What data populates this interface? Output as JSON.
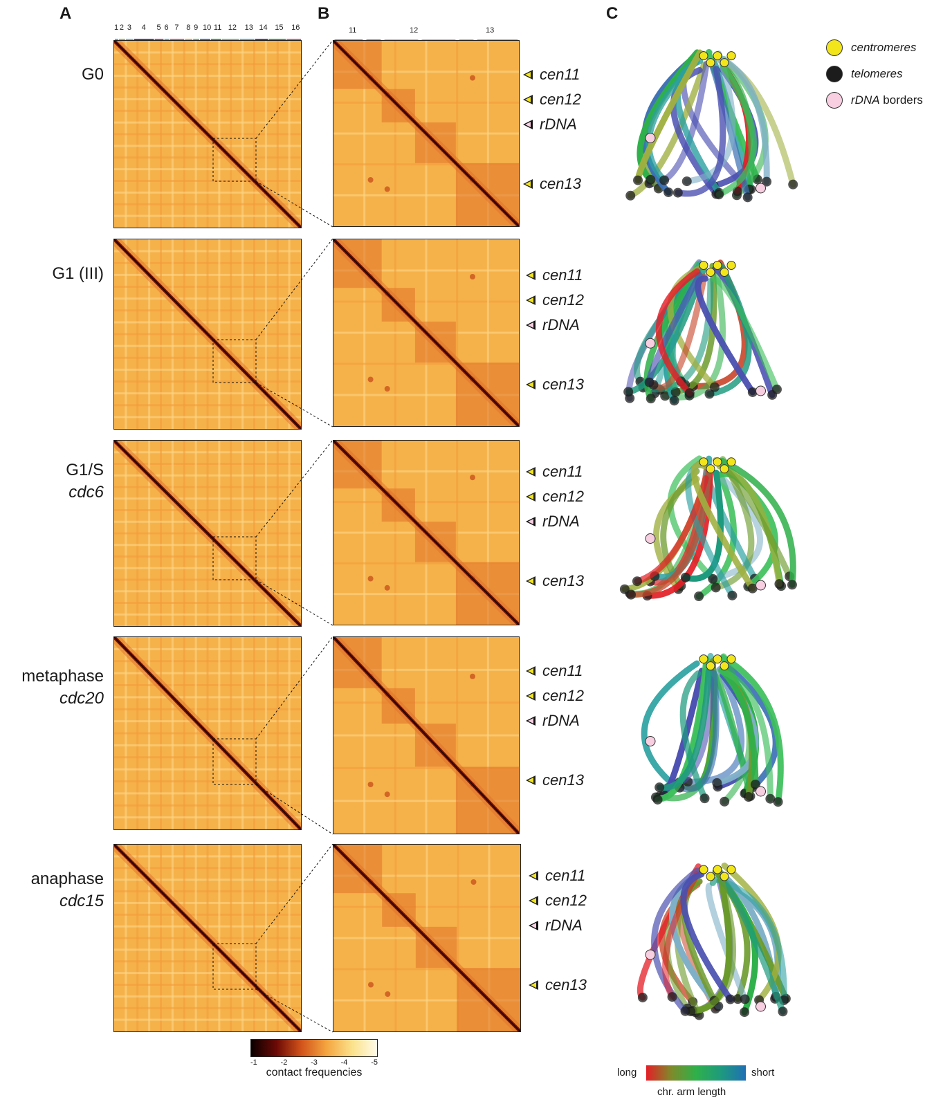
{
  "panels": {
    "a": "A",
    "b": "B",
    "c": "C"
  },
  "conditions": [
    {
      "label": "G0",
      "sub": ""
    },
    {
      "label": "G1 (III)",
      "sub": ""
    },
    {
      "label": "G1/S",
      "sub": "cdc6"
    },
    {
      "label": "metaphase",
      "sub": "cdc20"
    },
    {
      "label": "anaphase",
      "sub": "cdc15"
    }
  ],
  "genome_chromosomes": [
    "1",
    "2",
    "3",
    "4",
    "5",
    "6",
    "7",
    "8",
    "9",
    "10",
    "11",
    "12",
    "13",
    "14",
    "15",
    "16"
  ],
  "zoom_chromosomes": [
    "11",
    "12",
    "13"
  ],
  "markers": [
    "cen11",
    "cen12",
    "rDNA",
    "cen13"
  ],
  "legend": {
    "centromeres": "centromeres",
    "telomeres": "telomeres",
    "rdna_italic": "rDNA",
    "rdna_rest": " borders",
    "colors": {
      "centromeres": "#f2e51b",
      "telomeres": "#1c1c1c",
      "rdna": "#f7cfe0"
    }
  },
  "colorbar": {
    "ticks": [
      "-1",
      "-2",
      "-3",
      "-4",
      "-5"
    ],
    "label": "contact frequencies",
    "colors": [
      "#0a0000",
      "#6b0a05",
      "#d2541a",
      "#f4a640",
      "#fbe18a",
      "#fffbe8"
    ]
  },
  "arm_bar": {
    "long": "long",
    "short": "short",
    "label": "chr. arm length",
    "colors": [
      "#e41e26",
      "#7f8a2a",
      "#2fb04a",
      "#1e9a7e",
      "#1f6fb4"
    ]
  }
}
